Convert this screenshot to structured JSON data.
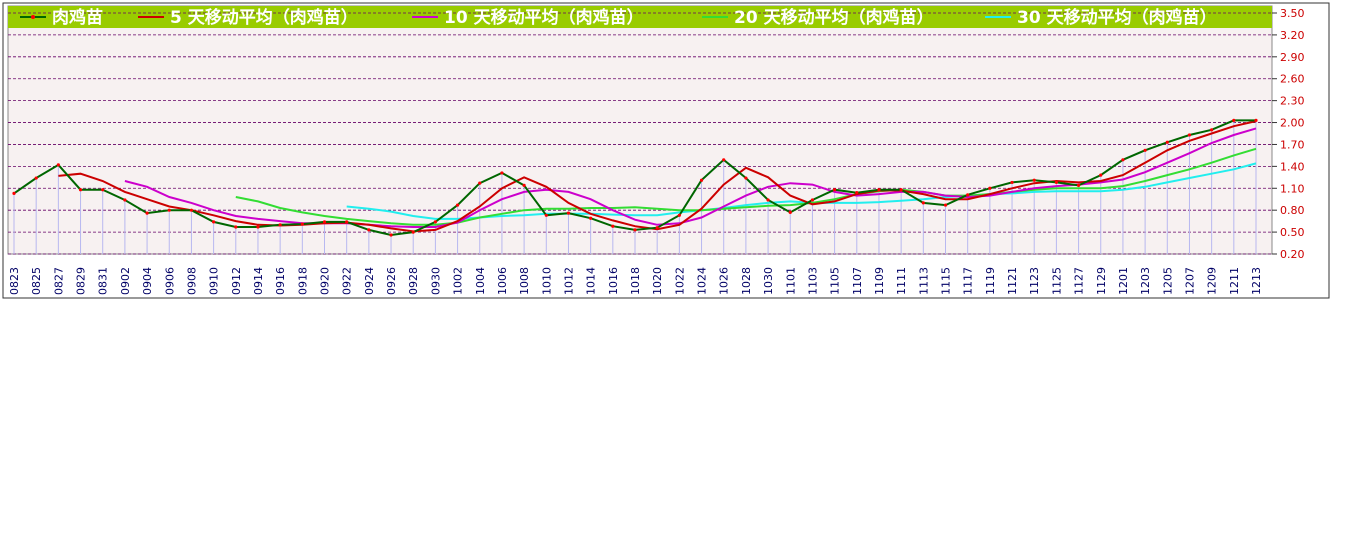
{
  "chart_data": {
    "type": "line",
    "categories": [
      "0823",
      null,
      "0825",
      null,
      "0827",
      null,
      "0829",
      null,
      "0831",
      null
    ],
    "x": [
      "0823",
      "0825",
      "0827",
      "0829",
      "0831",
      "0902",
      "0904",
      "0906",
      "0908",
      "0910",
      "0912",
      "0914",
      "0916",
      "0918",
      "0920",
      "0922",
      "0924",
      "0926",
      "0928",
      "0930",
      "1002",
      "1004",
      "1006",
      "1008",
      "1010",
      "1012",
      "1014",
      "1016",
      "1018",
      "1020",
      "1022",
      "1024",
      "1026",
      "1028",
      "1030",
      "1101",
      "1103",
      "1105",
      "1107",
      "1109",
      "1111",
      "1113",
      "1115",
      "1117",
      "1119",
      "1121",
      "1123",
      "1125",
      "1127",
      "1129",
      "1201",
      "1203",
      "1205",
      "1207",
      "1209",
      "1211",
      "1213"
    ],
    "series": [
      {
        "name": "肉鸡苗",
        "color": "#006600",
        "marker_color": "#ff0000",
        "values": [
          1.03,
          1.24,
          1.42,
          1.08,
          1.08,
          0.94,
          0.76,
          0.8,
          0.8,
          0.64,
          0.57,
          0.57,
          0.6,
          0.61,
          0.64,
          0.64,
          0.53,
          0.46,
          0.5,
          0.64,
          0.87,
          1.17,
          1.31,
          1.14,
          0.73,
          0.76,
          0.69,
          0.58,
          0.53,
          0.56,
          0.73,
          1.21,
          1.49,
          1.24,
          0.94,
          0.77,
          0.94,
          1.08,
          1.04,
          1.08,
          1.08,
          0.9,
          0.87,
          1.01,
          1.1,
          1.18,
          1.21,
          1.18,
          1.14,
          1.28,
          1.49,
          1.62,
          1.73,
          1.83,
          1.9,
          2.03,
          2.03
        ]
      },
      {
        "name": "5  天移动平均（肉鸡苗）",
        "color": "#cc0000",
        "values": [
          null,
          null,
          1.27,
          1.3,
          1.2,
          1.05,
          0.95,
          0.85,
          0.8,
          0.73,
          0.65,
          0.6,
          0.59,
          0.6,
          0.62,
          0.63,
          0.6,
          0.55,
          0.51,
          0.53,
          0.65,
          0.85,
          1.1,
          1.25,
          1.12,
          0.9,
          0.75,
          0.66,
          0.58,
          0.54,
          0.6,
          0.82,
          1.15,
          1.38,
          1.25,
          1.0,
          0.88,
          0.92,
          1.02,
          1.07,
          1.07,
          1.02,
          0.95,
          0.95,
          1.02,
          1.1,
          1.17,
          1.2,
          1.18,
          1.2,
          1.28,
          1.45,
          1.62,
          1.75,
          1.85,
          1.95,
          2.02
        ]
      },
      {
        "name": "10  天移动平均（肉鸡苗）",
        "color": "#cc00cc",
        "values": [
          null,
          null,
          null,
          null,
          null,
          1.2,
          1.12,
          0.98,
          0.9,
          0.8,
          0.72,
          0.68,
          0.65,
          0.62,
          0.62,
          0.62,
          0.6,
          0.58,
          0.57,
          0.57,
          0.63,
          0.8,
          0.95,
          1.05,
          1.08,
          1.05,
          0.95,
          0.8,
          0.67,
          0.6,
          0.62,
          0.7,
          0.85,
          1.0,
          1.12,
          1.17,
          1.15,
          1.05,
          1.0,
          1.02,
          1.05,
          1.05,
          1.0,
          0.98,
          1.0,
          1.05,
          1.1,
          1.13,
          1.15,
          1.18,
          1.22,
          1.32,
          1.45,
          1.58,
          1.72,
          1.83,
          1.92
        ]
      },
      {
        "name": "20  天移动平均（肉鸡苗）",
        "color": "#33dd33",
        "values": [
          null,
          null,
          null,
          null,
          null,
          null,
          null,
          null,
          null,
          null,
          0.98,
          0.92,
          0.83,
          0.77,
          0.72,
          0.68,
          0.65,
          0.62,
          0.6,
          0.6,
          0.63,
          0.7,
          0.75,
          0.8,
          0.82,
          0.82,
          0.83,
          0.83,
          0.84,
          0.82,
          0.8,
          0.8,
          0.82,
          0.84,
          0.86,
          0.87,
          0.9,
          0.95,
          1.02,
          1.06,
          1.08,
          1.05,
          1.0,
          1.0,
          1.02,
          1.05,
          1.08,
          1.1,
          1.1,
          1.1,
          1.13,
          1.2,
          1.28,
          1.36,
          1.45,
          1.55,
          1.64
        ]
      },
      {
        "name": "30  天移动平均（肉鸡苗）",
        "color": "#22eeee",
        "values": [
          null,
          null,
          null,
          null,
          null,
          null,
          null,
          null,
          null,
          null,
          null,
          null,
          null,
          null,
          null,
          0.85,
          0.82,
          0.78,
          0.72,
          0.68,
          0.68,
          0.7,
          0.72,
          0.73,
          0.75,
          0.75,
          0.75,
          0.74,
          0.73,
          0.73,
          0.77,
          0.8,
          0.83,
          0.87,
          0.9,
          0.92,
          0.9,
          0.9,
          0.9,
          0.91,
          0.93,
          0.95,
          0.98,
          1.0,
          1.02,
          1.03,
          1.05,
          1.06,
          1.06,
          1.06,
          1.08,
          1.12,
          1.18,
          1.24,
          1.3,
          1.36,
          1.44
        ]
      }
    ],
    "ylim": [
      0.2,
      3.5
    ],
    "yticks": [
      {
        "value": 0.2,
        "label": "0.20"
      },
      {
        "value": 0.5,
        "label": "0.50"
      },
      {
        "value": 0.8,
        "label": "0.80"
      },
      {
        "value": 1.1,
        "label": "1.10"
      },
      {
        "value": 1.4,
        "label": "1.40"
      },
      {
        "value": 1.7,
        "label": "1.70"
      },
      {
        "value": 2.0,
        "label": "2.00"
      },
      {
        "value": 2.3,
        "label": "2.30"
      },
      {
        "value": 2.6,
        "label": "2.60"
      },
      {
        "value": 2.9,
        "label": "2.90"
      },
      {
        "value": 3.2,
        "label": "3.20"
      },
      {
        "value": 3.5,
        "label": "3.50"
      }
    ],
    "grid": true,
    "legend": "top"
  }
}
